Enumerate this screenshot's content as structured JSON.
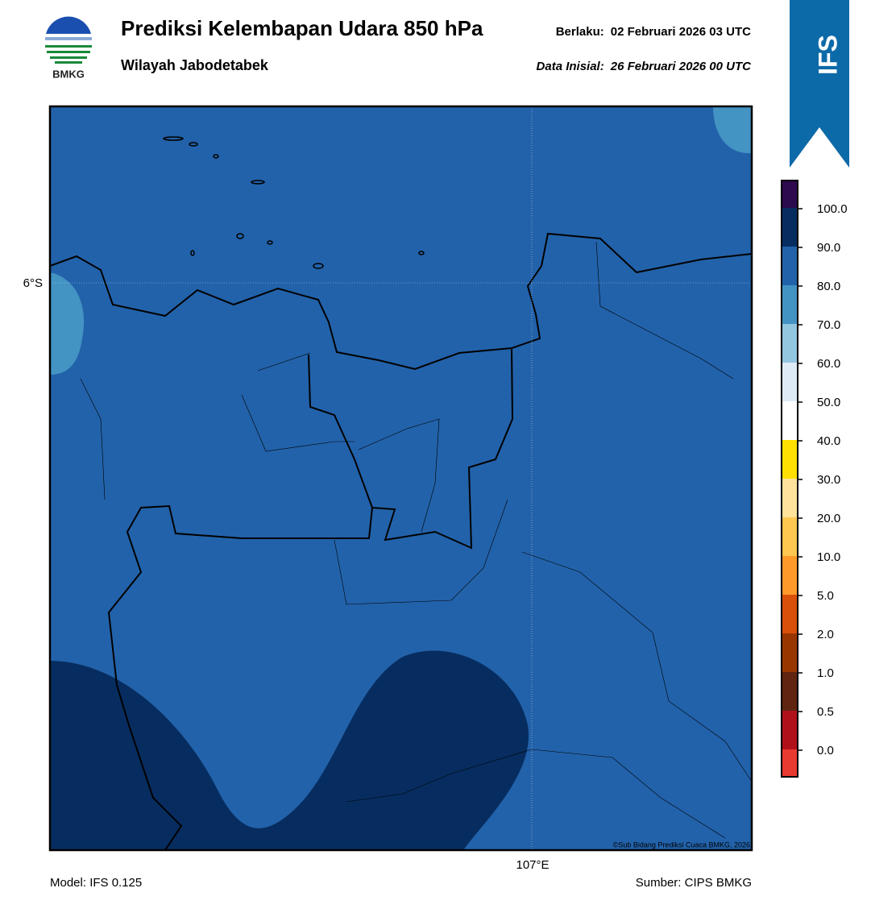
{
  "header": {
    "title": "Prediksi Kelembapan Udara 850 hPa",
    "subtitle": "Wilayah Jabodetabek",
    "valid_label": "Berlaku:",
    "valid_time": "02 Februari 2026 03 UTC",
    "init_label": "Data Inisial:",
    "init_time": "26 Februari 2026 00 UTC",
    "logo_text": "BMKG",
    "model_badge": "IFS"
  },
  "map": {
    "lat_label": "6°S",
    "lon_label": "107°E",
    "copyright": "©Sub Bidang Prediksi Cuaca BMKG, 2026"
  },
  "colorbar": {
    "labels": [
      "100.0",
      "90.0",
      "80.0",
      "70.0",
      "60.0",
      "50.0",
      "40.0",
      "30.0",
      "20.0",
      "10.0",
      "5.0",
      "2.0",
      "1.0",
      "0.5",
      "0.0"
    ]
  },
  "footer": {
    "model": "Model: IFS 0.125",
    "source": "Sumber: CIPS BMKG"
  }
}
